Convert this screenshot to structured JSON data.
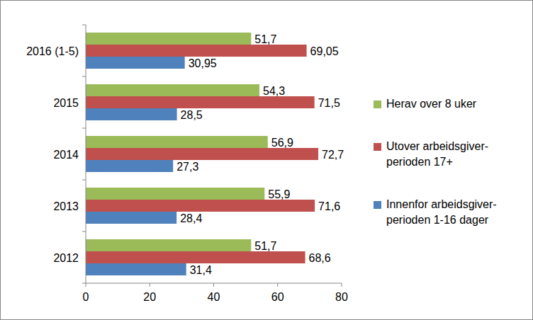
{
  "chart_data": {
    "type": "bar",
    "orientation": "horizontal",
    "categories": [
      "2012",
      "2013",
      "2014",
      "2015",
      "2016 (1-5)"
    ],
    "series": [
      {
        "name": "Herav over 8 uker",
        "color": "#9bbb59",
        "values": [
          51.7,
          55.9,
          56.9,
          54.3,
          51.7
        ],
        "value_labels": [
          "51,7",
          "55,9",
          "56,9",
          "54,3",
          "51,7"
        ]
      },
      {
        "name": "Utover arbeidsgiver-perioden 17+",
        "color": "#c0504d",
        "values": [
          68.6,
          71.6,
          72.7,
          71.5,
          69.05
        ],
        "value_labels": [
          "68,6",
          "71,6",
          "72,7",
          "71,5",
          "69,05"
        ]
      },
      {
        "name": "Innenfor arbeidsgiver-perioden 1-16 dager",
        "color": "#4f81bd",
        "values": [
          31.4,
          28.4,
          27.3,
          28.5,
          30.95
        ],
        "value_labels": [
          "31,4",
          "28,4",
          "27,3",
          "28,5",
          "30,95"
        ]
      }
    ],
    "xlim": [
      0,
      80
    ],
    "xticks": [
      0,
      20,
      40,
      60,
      80
    ],
    "grid": false,
    "legend": "right",
    "data_labels": true
  }
}
